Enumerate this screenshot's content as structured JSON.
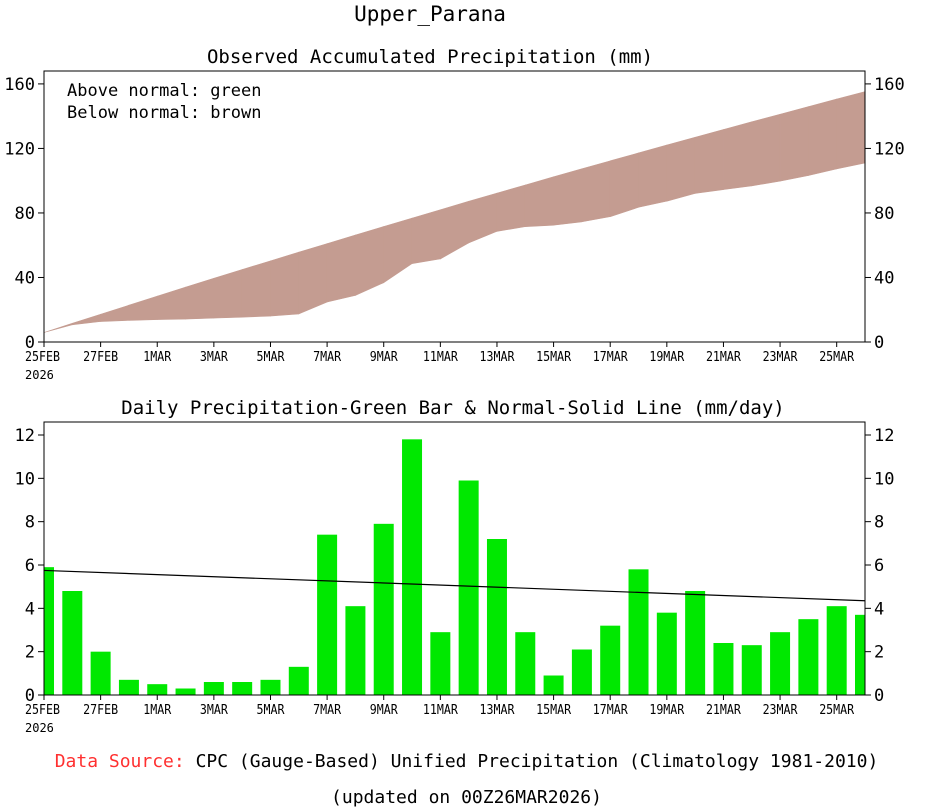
{
  "title": "Upper_Parana",
  "footer": {
    "source_label": "Data Source:",
    "source_text": " CPC (Gauge-Based) Unified Precipitation (Climatology 1981-2010)",
    "updated": "(updated on 00Z26MAR2026)"
  },
  "colors": {
    "below_normal": "#c49c91",
    "above_normal": "#00cc00",
    "bars": "#00e800",
    "normal_line": "#000000",
    "source_label": "#ff3030"
  },
  "chart_data": [
    {
      "type": "area",
      "title": "Observed Accumulated Precipitation (mm)",
      "legend": [
        "Above normal: green",
        "Below normal: brown"
      ],
      "legend_position": "top-left",
      "x_labels": [
        "25FEB",
        "27FEB",
        "1MAR",
        "3MAR",
        "5MAR",
        "7MAR",
        "9MAR",
        "11MAR",
        "13MAR",
        "15MAR",
        "17MAR",
        "19MAR",
        "21MAR",
        "23MAR",
        "25MAR"
      ],
      "x_label_year": "2026",
      "yticks": [
        0,
        40,
        80,
        120,
        160
      ],
      "ylim": [
        0,
        168
      ],
      "series": [
        {
          "name": "Normal accumulated",
          "values": [
            5.9,
            11.6,
            17.2,
            22.8,
            28.4,
            34.0,
            39.5,
            44.9,
            50.3,
            55.7,
            61.0,
            66.3,
            71.6,
            76.8,
            82.0,
            87.2,
            92.3,
            97.3,
            102.4,
            107.4,
            112.3,
            117.2,
            122.1,
            126.9,
            131.7,
            136.5,
            141.2,
            145.9,
            150.6,
            155.2
          ]
        },
        {
          "name": "Observed accumulated",
          "values": [
            5.9,
            10.7,
            12.7,
            13.4,
            13.9,
            14.2,
            14.8,
            15.4,
            16.1,
            17.4,
            24.8,
            28.9,
            36.8,
            48.6,
            51.5,
            61.4,
            68.6,
            71.5,
            72.4,
            74.5,
            77.7,
            83.5,
            87.3,
            92.1,
            94.5,
            96.8,
            99.7,
            103.2,
            107.3,
            111.0
          ]
        }
      ]
    },
    {
      "type": "bar",
      "title": "Daily Precipitation-Green Bar & Normal-Solid Line (mm/day)",
      "x_labels": [
        "25FEB",
        "27FEB",
        "1MAR",
        "3MAR",
        "5MAR",
        "7MAR",
        "9MAR",
        "11MAR",
        "13MAR",
        "15MAR",
        "17MAR",
        "19MAR",
        "21MAR",
        "23MAR",
        "25MAR"
      ],
      "x_label_year": "2026",
      "yticks": [
        0,
        2,
        4,
        6,
        8,
        10,
        12
      ],
      "ylim": [
        0,
        12.6
      ],
      "values": [
        5.9,
        4.8,
        2.0,
        0.7,
        0.5,
        0.3,
        0.6,
        0.6,
        0.7,
        1.3,
        7.4,
        4.1,
        7.9,
        11.8,
        2.9,
        9.9,
        7.2,
        2.9,
        0.9,
        2.1,
        3.2,
        5.8,
        3.8,
        4.8,
        2.4,
        2.3,
        2.9,
        3.5,
        4.1,
        3.7
      ],
      "normal_line": [
        5.75,
        4.35
      ]
    }
  ]
}
